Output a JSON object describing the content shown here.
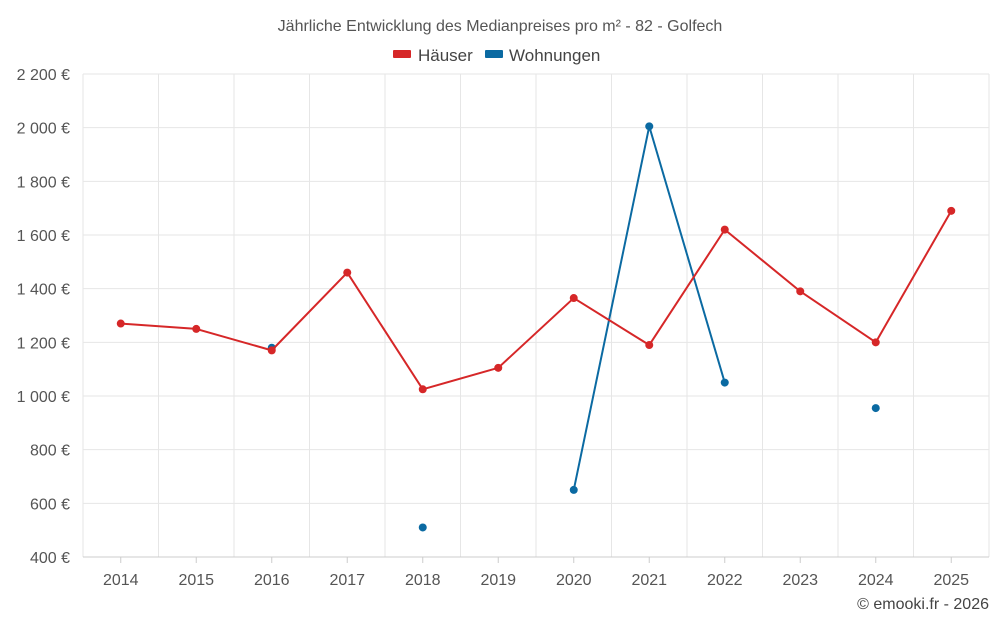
{
  "chart_data": {
    "type": "line",
    "title": "Jährliche Entwicklung des Medianpreises pro m² - 82 - Golfech",
    "categories": [
      "2014",
      "2015",
      "2016",
      "2017",
      "2018",
      "2019",
      "2020",
      "2021",
      "2022",
      "2023",
      "2024",
      "2025"
    ],
    "y_ticks": [
      "400 €",
      "600 €",
      "800 €",
      "1 000 €",
      "1 200 €",
      "1 400 €",
      "1 600 €",
      "1 800 €",
      "2 000 €",
      "2 200 €"
    ],
    "ylim": [
      400,
      2200
    ],
    "ystep": 200,
    "series": [
      {
        "name": "Häuser",
        "color": "#d62728",
        "values": [
          1270,
          1250,
          1170,
          1460,
          1025,
          1105,
          1365,
          1190,
          1620,
          1390,
          1200,
          1690
        ]
      },
      {
        "name": "Wohnungen",
        "color": "#0b6aa2",
        "values": [
          null,
          null,
          1180,
          null,
          510,
          null,
          650,
          2005,
          1050,
          null,
          955,
          null
        ]
      }
    ],
    "legend_position": "top-center",
    "grid": true
  },
  "credit": "© emooki.fr - 2026"
}
